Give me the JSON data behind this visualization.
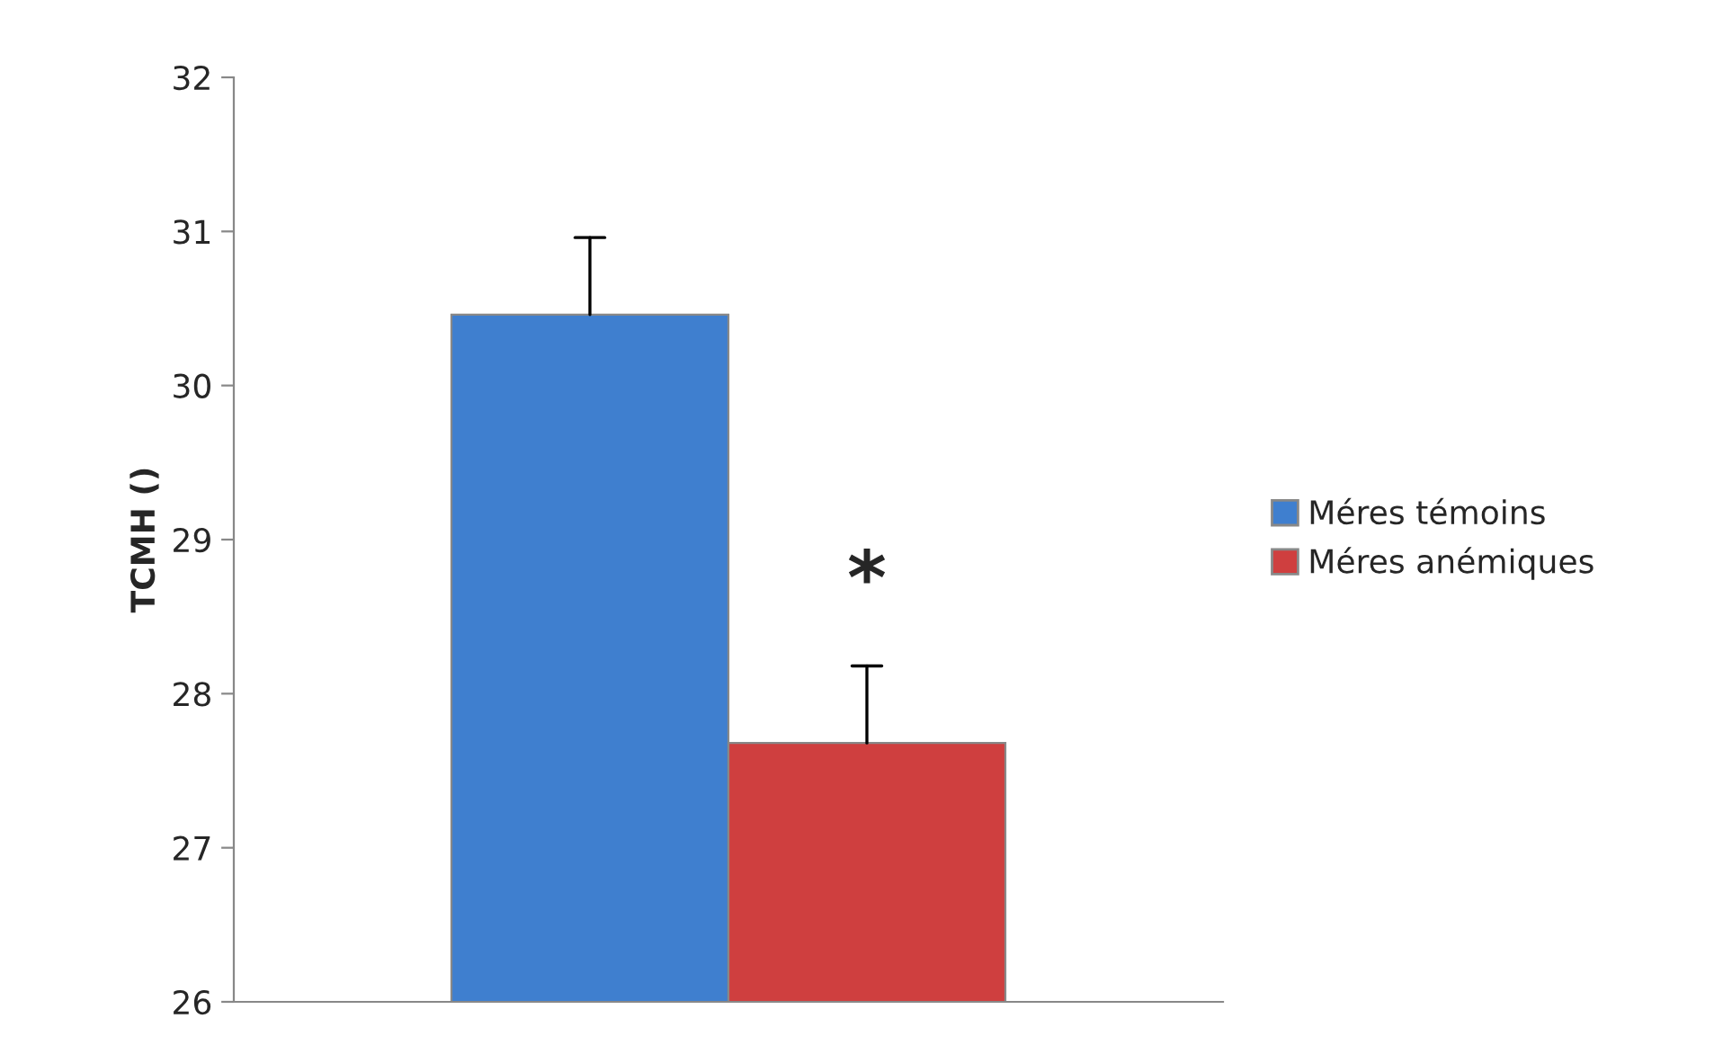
{
  "chart_data": {
    "type": "bar",
    "ylabel": "TCMH ()",
    "categories": [
      null
    ],
    "series": [
      {
        "name": "Méres témoins",
        "color": "#3f7fcf",
        "values": [
          30.46
        ],
        "errors": [
          [
            30.46,
            30.96
          ]
        ]
      },
      {
        "name": "Méres anémiques",
        "color": "#cf3f3f",
        "values": [
          27.68
        ],
        "errors": [
          [
            27.68,
            28.18
          ]
        ]
      }
    ],
    "ylim": [
      26,
      32
    ],
    "yticks": [
      26,
      27,
      28,
      29,
      30,
      31,
      32
    ],
    "grid": false,
    "legend": "right",
    "annotations": [
      "*"
    ]
  }
}
